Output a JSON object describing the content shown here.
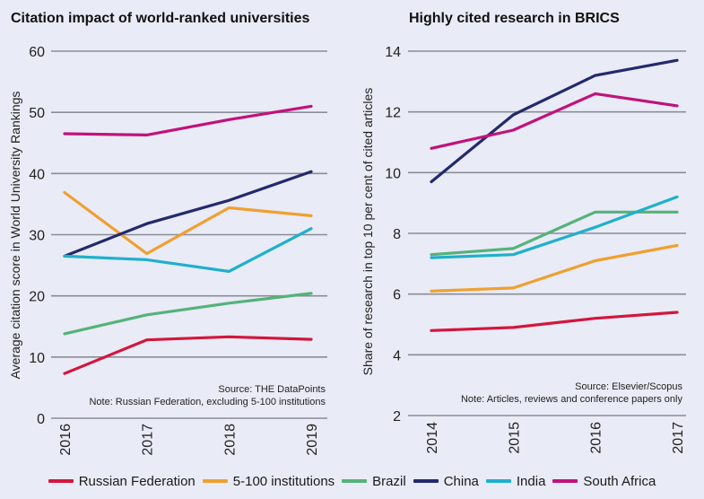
{
  "chart_data": [
    {
      "type": "line",
      "title": "Citation impact of world-ranked universities",
      "xlabel": "",
      "ylabel": "Average citation score in World University Rankings",
      "x": [
        "2016",
        "2017",
        "2018",
        "2019"
      ],
      "ylim": [
        0,
        60
      ],
      "yticks": [
        0,
        10,
        20,
        30,
        40,
        50,
        60
      ],
      "grid": true,
      "source": "Source: THE DataPoints",
      "note": "Note: Russian Federation, excluding 5-100 institutions",
      "series": [
        {
          "name": "Russian Federation",
          "values": [
            7.3,
            12.8,
            13.3,
            12.9
          ]
        },
        {
          "name": "5-100 institutions",
          "values": [
            36.9,
            26.9,
            34.4,
            33.1
          ]
        },
        {
          "name": "Brazil",
          "values": [
            13.8,
            16.9,
            18.8,
            20.4
          ]
        },
        {
          "name": "China",
          "values": [
            26.5,
            31.8,
            35.6,
            40.3
          ]
        },
        {
          "name": "India",
          "values": [
            26.5,
            25.9,
            24.0,
            31.0
          ]
        },
        {
          "name": "South Africa",
          "values": [
            46.5,
            46.3,
            48.8,
            51.0
          ]
        }
      ]
    },
    {
      "type": "line",
      "title": "Highly cited research in BRICS",
      "xlabel": "",
      "ylabel": "Share of research in top 10 per cent of cited articles",
      "x": [
        "2014",
        "2015",
        "2016",
        "2017"
      ],
      "ylim": [
        2,
        14
      ],
      "yticks": [
        2,
        4,
        6,
        8,
        10,
        12,
        14
      ],
      "grid": true,
      "source": "Source: Elsevier/Scopus",
      "note": "Note: Articles, reviews and conference papers only",
      "series": [
        {
          "name": "Russian Federation",
          "values": [
            4.8,
            4.9,
            5.2,
            5.4
          ]
        },
        {
          "name": "5-100 institutions",
          "values": [
            6.1,
            6.2,
            7.1,
            7.6
          ]
        },
        {
          "name": "Brazil",
          "values": [
            7.3,
            7.5,
            8.7,
            8.7
          ]
        },
        {
          "name": "China",
          "values": [
            9.7,
            11.9,
            13.2,
            13.7
          ]
        },
        {
          "name": "India",
          "values": [
            7.2,
            7.3,
            8.2,
            9.2
          ]
        },
        {
          "name": "South Africa",
          "values": [
            10.8,
            11.4,
            12.6,
            12.2
          ]
        }
      ]
    }
  ],
  "legend": {
    "placement": "bottom-center",
    "items": [
      {
        "label": "Russian Federation",
        "color": "#d3163d"
      },
      {
        "label": "5-100 institutions",
        "color": "#f0a030"
      },
      {
        "label": "Brazil",
        "color": "#55b27a"
      },
      {
        "label": "China",
        "color": "#23296b"
      },
      {
        "label": "India",
        "color": "#1fb0cc"
      },
      {
        "label": "South Africa",
        "color": "#c2127a"
      }
    ]
  }
}
